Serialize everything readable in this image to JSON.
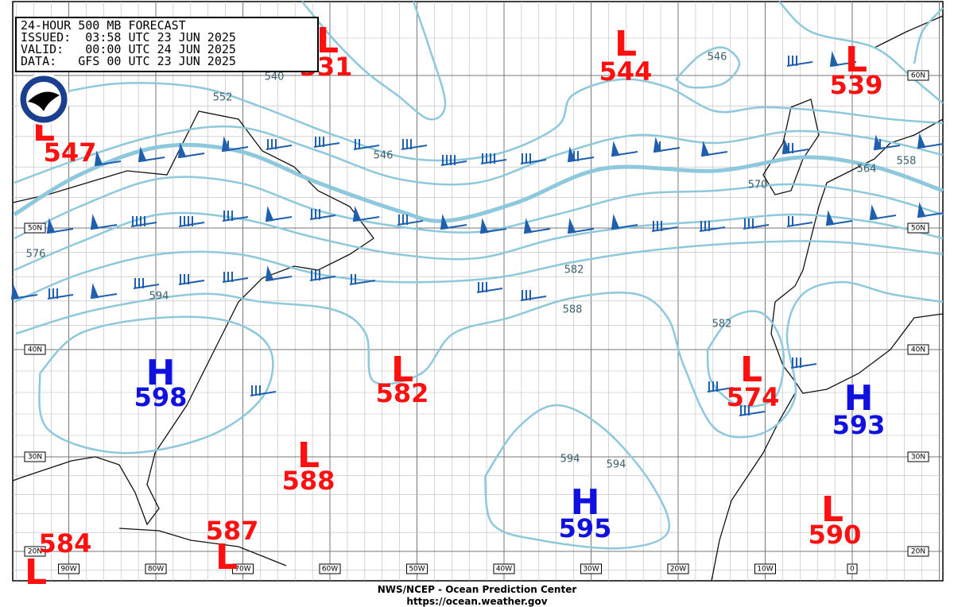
{
  "header": {
    "lines": [
      "24-HOUR 500 MB FORECAST",
      "ISSUED:  03:58 UTC 23 JUN 2025",
      "VALID:   00:00 UTC 24 JUN 2025",
      "DATA:   GFS 00 UTC 23 JUN 2025"
    ]
  },
  "centers": [
    {
      "kind": "L",
      "value": "531"
    },
    {
      "kind": "L",
      "value": "544"
    },
    {
      "kind": "L",
      "value": "539"
    },
    {
      "kind": "L",
      "value": "547"
    },
    {
      "kind": "H",
      "value": "598"
    },
    {
      "kind": "L",
      "value": "582"
    },
    {
      "kind": "L",
      "value": "574"
    },
    {
      "kind": "H",
      "value": "593"
    },
    {
      "kind": "L",
      "value": "588"
    },
    {
      "kind": "H",
      "value": "595"
    },
    {
      "kind": "L",
      "value": "587"
    },
    {
      "kind": "L",
      "value": "584"
    },
    {
      "kind": "L",
      "value": "590"
    }
  ],
  "contour_labels": [
    "552",
    "540",
    "546",
    "546",
    "564",
    "558",
    "570",
    "576",
    "582",
    "588",
    "582",
    "594",
    "594",
    "594"
  ],
  "longitude_labels": [
    "90W",
    "80W",
    "70W",
    "60W",
    "50W",
    "40W",
    "30W",
    "20W",
    "10W",
    "0"
  ],
  "latitude_labels_left": [
    "50N",
    "40N",
    "30N",
    "20N"
  ],
  "latitude_labels_right": [
    "60N",
    "50N",
    "40N",
    "30N",
    "20N"
  ],
  "footer": {
    "lines": [
      "NWS/NCEP - Ocean Prediction Center",
      "https://ocean.weather.gov"
    ]
  }
}
